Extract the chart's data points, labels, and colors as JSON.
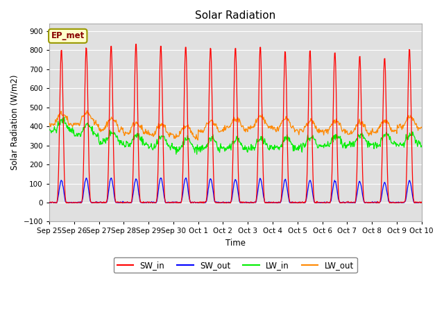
{
  "title": "Solar Radiation",
  "ylabel": "Solar Radiation (W/m2)",
  "xlabel": "Time",
  "ylim": [
    -100,
    940
  ],
  "yticks": [
    -100,
    0,
    100,
    200,
    300,
    400,
    500,
    600,
    700,
    800,
    900
  ],
  "xtick_labels": [
    "Sep 25",
    "Sep 26",
    "Sep 27",
    "Sep 28",
    "Sep 29",
    "Sep 30",
    "Oct 1",
    "Oct 2",
    "Oct 3",
    "Oct 4",
    "Oct 5",
    "Oct 6",
    "Oct 7",
    "Oct 8",
    "Oct 9",
    "Oct 10"
  ],
  "bg_color": "#e0e0e0",
  "fig_color": "#ffffff",
  "grid_color": "#ffffff",
  "annotation_label": "EP_met",
  "annotation_box_color": "#ffffcc",
  "annotation_border_color": "#999900",
  "line_colors": {
    "SW_in": "#ff0000",
    "SW_out": "#0000ff",
    "LW_in": "#00ee00",
    "LW_out": "#ff8800"
  },
  "n_days": 15,
  "pts_per_day": 48,
  "SW_in_peaks": [
    810,
    820,
    830,
    840,
    830,
    825,
    820,
    820,
    825,
    800,
    805,
    795,
    775,
    765,
    810
  ],
  "SW_out_peaks": [
    115,
    130,
    130,
    125,
    130,
    130,
    125,
    120,
    125,
    120,
    115,
    115,
    110,
    105,
    115
  ],
  "LW_in_day_base": [
    380,
    355,
    320,
    305,
    290,
    282,
    285,
    282,
    285,
    288,
    295,
    300,
    305,
    305,
    308
  ],
  "LW_out_day_base": [
    410,
    415,
    385,
    365,
    355,
    345,
    375,
    385,
    395,
    385,
    375,
    375,
    365,
    375,
    395
  ]
}
